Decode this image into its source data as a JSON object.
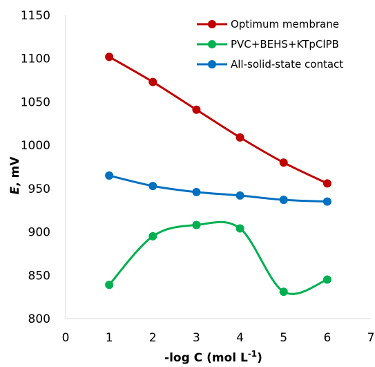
{
  "chart_data": {
    "type": "line",
    "xlabel": "-log C (mol L",
    "xlabel_sup": "-1",
    "xlabel_end": ")",
    "ylabel_italic": "E",
    "ylabel_rest": ", mV",
    "xlim": [
      0,
      7
    ],
    "ylim": [
      800,
      1150
    ],
    "xticks": [
      0,
      1,
      2,
      3,
      4,
      5,
      6,
      7
    ],
    "yticks": [
      800,
      850,
      900,
      950,
      1000,
      1050,
      1100,
      1150
    ],
    "grid": false,
    "smooth": true,
    "legend_position": "top-right",
    "series": [
      {
        "name": "Optimum membrane",
        "color": "#c00000",
        "x": [
          1,
          2,
          3,
          4,
          5,
          6
        ],
        "y": [
          1102,
          1073,
          1041,
          1009,
          980,
          956
        ]
      },
      {
        "name": "PVC+BEHS+KTpClPB",
        "color": "#00b050",
        "x": [
          1,
          2,
          3,
          4,
          5,
          6
        ],
        "y": [
          839,
          895,
          908,
          904,
          831,
          845
        ]
      },
      {
        "name": "All-solid-state contact",
        "color": "#0070c0",
        "x": [
          1,
          2,
          3,
          4,
          5,
          6
        ],
        "y": [
          965,
          953,
          946,
          942,
          937,
          935
        ]
      }
    ]
  }
}
